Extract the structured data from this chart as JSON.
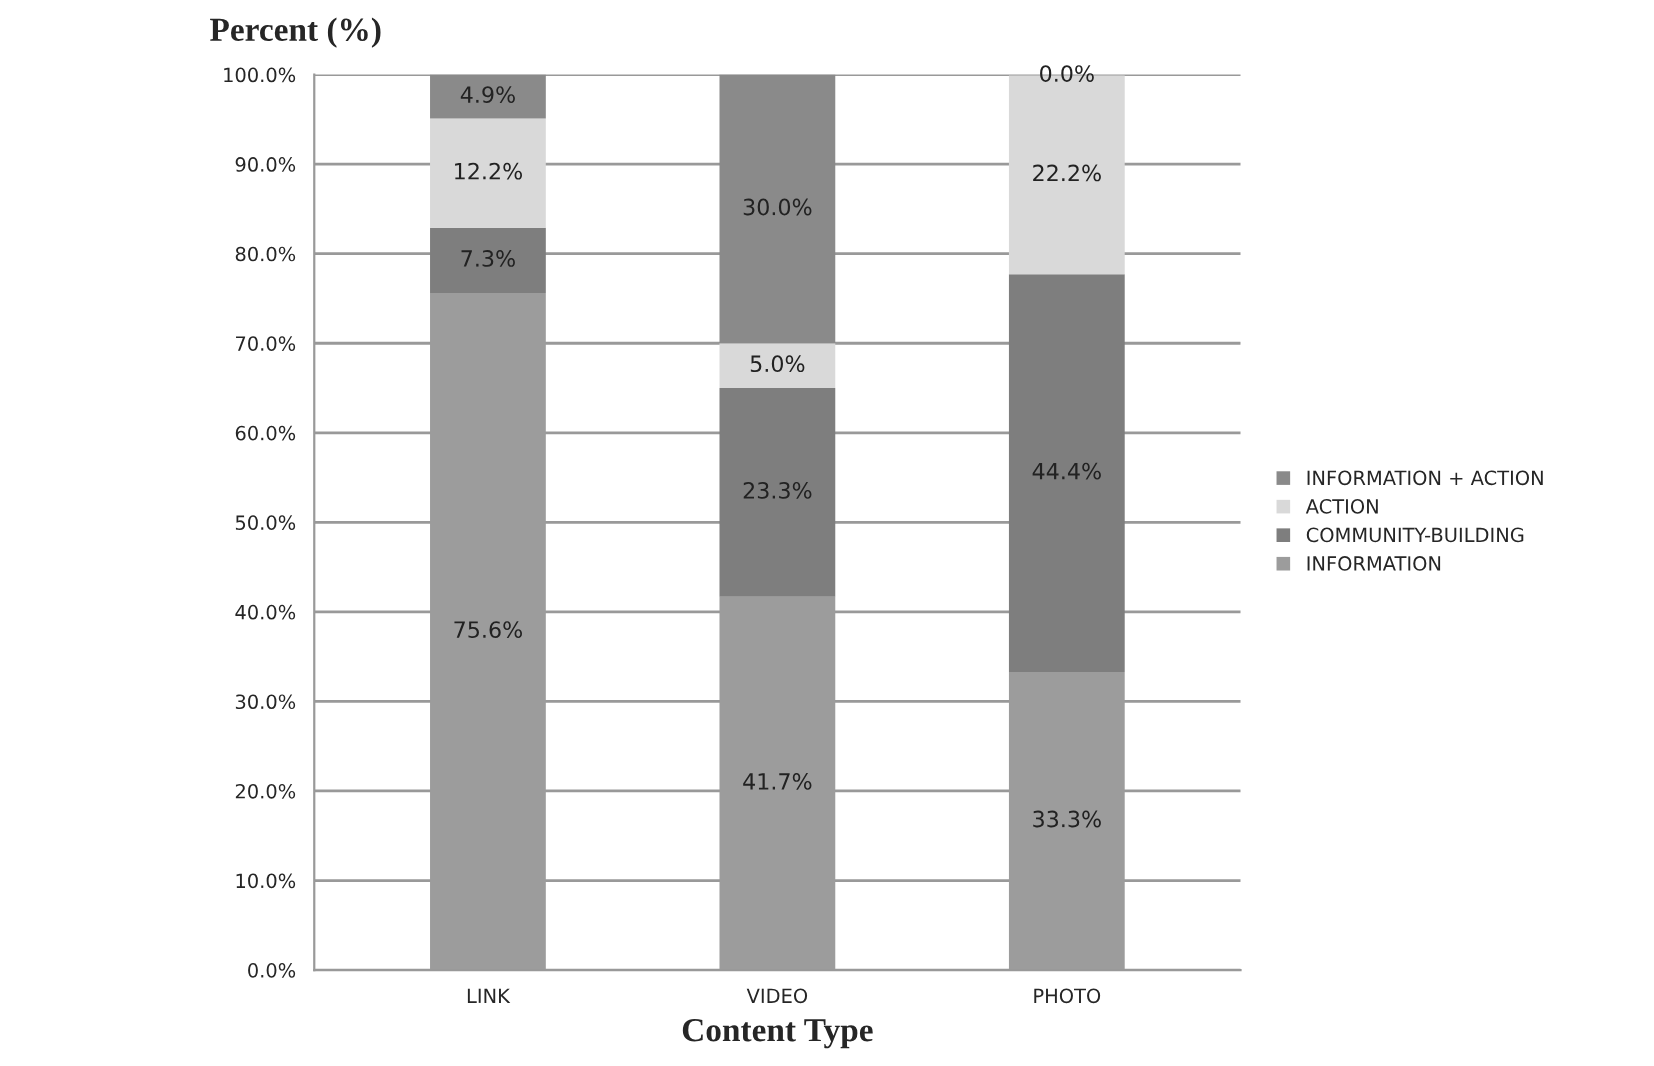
{
  "chart_data": {
    "type": "bar",
    "stacked": true,
    "xlabel": "Content Type",
    "ylabel": "Percent (%)",
    "categories": [
      "LINK",
      "VIDEO",
      "PHOTO"
    ],
    "series": [
      {
        "name": "INFORMATION",
        "color": "#9c9c9c",
        "values": [
          75.6,
          41.7,
          33.3
        ],
        "value_labels": [
          "75.6%",
          "41.7%",
          "33.3%"
        ]
      },
      {
        "name": "COMMUNITY-BUILDING",
        "color": "#7e7e7e",
        "values": [
          7.3,
          23.3,
          44.4
        ],
        "value_labels": [
          "7.3%",
          "23.3%",
          "44.4%"
        ]
      },
      {
        "name": "ACTION",
        "color": "#d9d9d9",
        "values": [
          12.2,
          5.0,
          22.2
        ],
        "value_labels": [
          "12.2%",
          "5.0%",
          "22.2%"
        ]
      },
      {
        "name": "INFORMATION + ACTION",
        "color": "#8a8a8a",
        "values": [
          4.9,
          30.0,
          0.0
        ],
        "value_labels": [
          "4.9%",
          "30.0%",
          "0.0%"
        ]
      }
    ],
    "ylim": [
      0,
      100
    ],
    "yticks": [
      {
        "value": 0,
        "label": "0.0%"
      },
      {
        "value": 10,
        "label": "10.0%"
      },
      {
        "value": 20,
        "label": "20.0%"
      },
      {
        "value": 30,
        "label": "30.0%"
      },
      {
        "value": 40,
        "label": "40.0%"
      },
      {
        "value": 50,
        "label": "50.0%"
      },
      {
        "value": 60,
        "label": "60.0%"
      },
      {
        "value": 70,
        "label": "70.0%"
      },
      {
        "value": 80,
        "label": "80.0%"
      },
      {
        "value": 90,
        "label": "90.0%"
      },
      {
        "value": 100,
        "label": "100.0%"
      }
    ],
    "grid": "y",
    "legend": "right"
  }
}
